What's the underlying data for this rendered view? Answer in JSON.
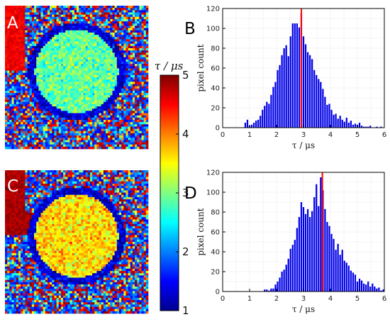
{
  "panels": {
    "A": "A",
    "B": "B",
    "C": "C",
    "D": "D"
  },
  "colorbar": {
    "title": "τ / μs",
    "ticks": [
      "5",
      "4",
      "3",
      "2",
      "1"
    ],
    "range": [
      1,
      5
    ],
    "colormap": "jet"
  },
  "chart_data": [
    {
      "panel": "B",
      "type": "bar",
      "xlabel": "τ / μs",
      "ylabel": "pixel count",
      "xlim": [
        0,
        6
      ],
      "ylim": [
        0,
        120
      ],
      "xticks": [
        0,
        1,
        2,
        3,
        4,
        5,
        6
      ],
      "yticks": [
        0,
        20,
        40,
        60,
        80,
        100,
        120
      ],
      "grid": true,
      "bar_color": "#0000e6",
      "marker_color": "#ff0000",
      "marker_x": 2.92,
      "bin_width": 0.08,
      "x": [
        0.84,
        0.92,
        1.0,
        1.08,
        1.16,
        1.24,
        1.32,
        1.4,
        1.48,
        1.56,
        1.64,
        1.72,
        1.8,
        1.88,
        1.96,
        2.04,
        2.12,
        2.2,
        2.28,
        2.36,
        2.44,
        2.52,
        2.6,
        2.68,
        2.76,
        2.84,
        2.92,
        3.0,
        3.08,
        3.16,
        3.24,
        3.32,
        3.4,
        3.48,
        3.56,
        3.64,
        3.72,
        3.8,
        3.88,
        3.96,
        4.04,
        4.12,
        4.2,
        4.28,
        4.36,
        4.44,
        4.52,
        4.6,
        4.68,
        4.76,
        4.84,
        4.92,
        5.0,
        5.08,
        5.16,
        5.24,
        5.32,
        5.4,
        5.48,
        5.56,
        5.64,
        5.72,
        5.8,
        5.88
      ],
      "values": [
        5,
        8,
        2,
        3,
        5,
        7,
        8,
        12,
        18,
        22,
        26,
        24,
        33,
        41,
        46,
        58,
        63,
        73,
        80,
        83,
        72,
        92,
        105,
        105,
        105,
        101,
        115,
        92,
        84,
        76,
        73,
        69,
        58,
        53,
        49,
        46,
        39,
        31,
        23,
        24,
        18,
        13,
        14,
        9,
        12,
        8,
        6,
        10,
        5,
        7,
        3,
        4,
        3,
        5,
        2,
        1,
        1,
        1,
        2,
        0,
        0,
        1,
        0,
        1
      ]
    },
    {
      "panel": "D",
      "type": "bar",
      "xlabel": "τ / μs",
      "ylabel": "pixel count",
      "xlim": [
        0,
        6
      ],
      "ylim": [
        0,
        120
      ],
      "xticks": [
        0,
        1,
        2,
        3,
        4,
        5,
        6
      ],
      "yticks": [
        0,
        20,
        40,
        60,
        80,
        100,
        120
      ],
      "grid": true,
      "bar_color": "#0000e6",
      "marker_color": "#ff0000",
      "marker_x": 3.7,
      "bin_width": 0.08,
      "x": [
        1.56,
        1.64,
        1.72,
        1.8,
        1.88,
        1.96,
        2.04,
        2.12,
        2.2,
        2.28,
        2.36,
        2.44,
        2.52,
        2.6,
        2.68,
        2.76,
        2.84,
        2.92,
        3.0,
        3.08,
        3.16,
        3.24,
        3.32,
        3.4,
        3.48,
        3.56,
        3.64,
        3.72,
        3.8,
        3.88,
        3.96,
        4.04,
        4.12,
        4.2,
        4.28,
        4.36,
        4.44,
        4.52,
        4.6,
        4.68,
        4.76,
        4.84,
        4.92,
        5.0,
        5.08,
        5.16,
        5.24,
        5.32,
        5.4,
        5.48,
        5.56,
        5.64,
        5.72,
        5.8,
        5.88,
        5.96
      ],
      "values": [
        2,
        2,
        1,
        3,
        3,
        7,
        10,
        14,
        20,
        22,
        27,
        33,
        43,
        47,
        52,
        64,
        75,
        90,
        85,
        78,
        83,
        75,
        81,
        95,
        108,
        86,
        115,
        102,
        83,
        70,
        66,
        58,
        53,
        42,
        48,
        37,
        42,
        31,
        29,
        26,
        21,
        19,
        17,
        10,
        13,
        11,
        8,
        7,
        10,
        5,
        8,
        5,
        3,
        4,
        1,
        2
      ]
    }
  ]
}
